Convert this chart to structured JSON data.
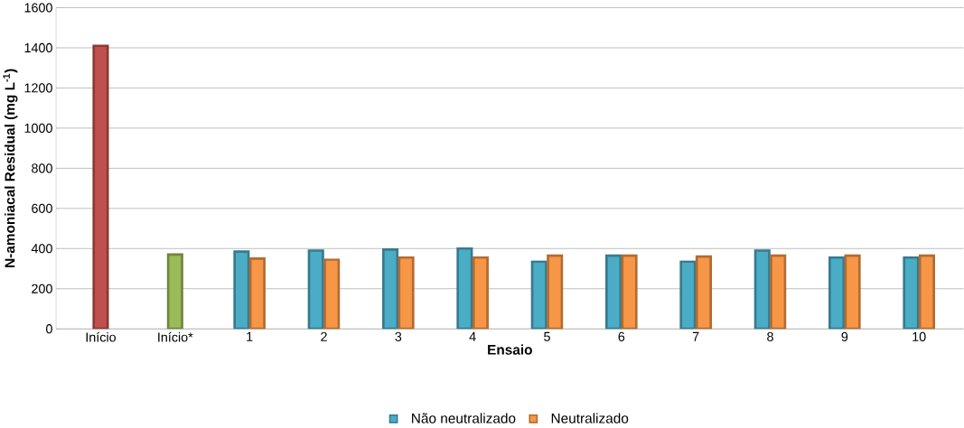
{
  "chart_data": {
    "type": "bar",
    "xlabel": "Ensaio",
    "ylabel": "N-amoniacal Residual (mg L$^{-1}$)",
    "categories": [
      "Início",
      "Início*",
      "1",
      "2",
      "3",
      "4",
      "5",
      "6",
      "7",
      "8",
      "9",
      "10"
    ],
    "series": [
      {
        "color": "#c0504d",
        "values": [
          1410,
          null,
          null,
          null,
          null,
          null,
          null,
          null,
          null,
          null,
          null,
          null
        ]
      },
      {
        "color": "#9bbb59",
        "values": [
          null,
          370,
          null,
          null,
          null,
          null,
          null,
          null,
          null,
          null,
          null,
          null
        ]
      },
      {
        "name": "Não neutralizado",
        "color": "#4bacc6",
        "values": [
          null,
          null,
          385,
          390,
          395,
          400,
          335,
          365,
          335,
          390,
          355,
          355
        ]
      },
      {
        "name": "Neutralizado",
        "color": "#f79646",
        "values": [
          null,
          null,
          350,
          345,
          355,
          355,
          365,
          365,
          360,
          365,
          365,
          365
        ]
      }
    ],
    "ylim": [
      0,
      1600
    ],
    "yticks": [
      0,
      200,
      400,
      600,
      800,
      1000,
      1200,
      1400,
      1600
    ],
    "grid": "y",
    "legend": "bottom"
  }
}
